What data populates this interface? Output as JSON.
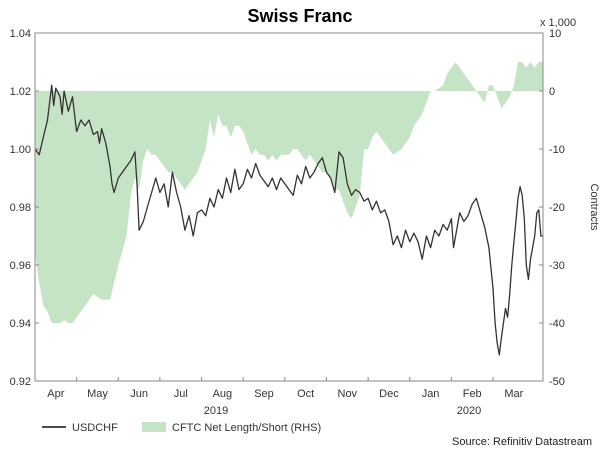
{
  "chart_data": {
    "type": "line",
    "title": "Swiss Franc",
    "multiplier_label": "x 1,000",
    "right_axis_label": "Contracts",
    "x_ticks": [
      "Apr",
      "May",
      "Jun",
      "Jul",
      "Aug",
      "Sep",
      "Oct",
      "Nov",
      "Dec",
      "Jan",
      "Feb",
      "Mar"
    ],
    "year_labels": [
      "2019",
      "2020"
    ],
    "left_axis": {
      "ticks": [
        "1.04",
        "1.02",
        "1.00",
        "0.98",
        "0.96",
        "0.94",
        "0.92"
      ],
      "ylim": [
        0.92,
        1.04
      ]
    },
    "right_axis": {
      "ticks": [
        "10",
        "0",
        "-10",
        "-20",
        "-30",
        "-40",
        "-50"
      ],
      "ylim": [
        -50,
        10
      ]
    },
    "x_range": [
      0,
      12.2
    ],
    "series": [
      {
        "name": "USDCHF",
        "color": "#333333",
        "points": [
          [
            0.0,
            1.0
          ],
          [
            0.1,
            0.998
          ],
          [
            0.2,
            1.004
          ],
          [
            0.3,
            1.01
          ],
          [
            0.4,
            1.022
          ],
          [
            0.45,
            1.015
          ],
          [
            0.5,
            1.021
          ],
          [
            0.6,
            1.018
          ],
          [
            0.65,
            1.012
          ],
          [
            0.7,
            1.02
          ],
          [
            0.8,
            1.013
          ],
          [
            0.9,
            1.018
          ],
          [
            1.0,
            1.006
          ],
          [
            1.1,
            1.01
          ],
          [
            1.2,
            1.008
          ],
          [
            1.3,
            1.01
          ],
          [
            1.4,
            1.005
          ],
          [
            1.5,
            1.006
          ],
          [
            1.55,
            1.002
          ],
          [
            1.6,
            1.007
          ],
          [
            1.7,
            1.002
          ],
          [
            1.8,
            0.994
          ],
          [
            1.85,
            0.988
          ],
          [
            1.9,
            0.985
          ],
          [
            2.0,
            0.99
          ],
          [
            2.1,
            0.992
          ],
          [
            2.2,
            0.994
          ],
          [
            2.3,
            0.996
          ],
          [
            2.4,
            0.999
          ],
          [
            2.45,
            0.988
          ],
          [
            2.5,
            0.972
          ],
          [
            2.6,
            0.975
          ],
          [
            2.7,
            0.98
          ],
          [
            2.8,
            0.985
          ],
          [
            2.9,
            0.99
          ],
          [
            3.0,
            0.985
          ],
          [
            3.1,
            0.988
          ],
          [
            3.2,
            0.98
          ],
          [
            3.3,
            0.992
          ],
          [
            3.4,
            0.985
          ],
          [
            3.5,
            0.98
          ],
          [
            3.6,
            0.972
          ],
          [
            3.7,
            0.977
          ],
          [
            3.8,
            0.97
          ],
          [
            3.9,
            0.978
          ],
          [
            4.0,
            0.979
          ],
          [
            4.1,
            0.977
          ],
          [
            4.2,
            0.983
          ],
          [
            4.3,
            0.98
          ],
          [
            4.4,
            0.986
          ],
          [
            4.5,
            0.983
          ],
          [
            4.6,
            0.99
          ],
          [
            4.7,
            0.985
          ],
          [
            4.8,
            0.993
          ],
          [
            4.9,
            0.986
          ],
          [
            5.0,
            0.988
          ],
          [
            5.1,
            0.993
          ],
          [
            5.2,
            0.99
          ],
          [
            5.3,
            0.995
          ],
          [
            5.4,
            0.991
          ],
          [
            5.5,
            0.989
          ],
          [
            5.6,
            0.987
          ],
          [
            5.7,
            0.99
          ],
          [
            5.8,
            0.986
          ],
          [
            5.9,
            0.99
          ],
          [
            6.0,
            0.988
          ],
          [
            6.1,
            0.986
          ],
          [
            6.2,
            0.984
          ],
          [
            6.3,
            0.991
          ],
          [
            6.4,
            0.988
          ],
          [
            6.5,
            0.994
          ],
          [
            6.6,
            0.99
          ],
          [
            6.7,
            0.992
          ],
          [
            6.8,
            0.995
          ],
          [
            6.9,
            0.997
          ],
          [
            7.0,
            0.992
          ],
          [
            7.1,
            0.99
          ],
          [
            7.2,
            0.985
          ],
          [
            7.3,
            0.999
          ],
          [
            7.4,
            0.997
          ],
          [
            7.5,
            0.988
          ],
          [
            7.6,
            0.984
          ],
          [
            7.7,
            0.986
          ],
          [
            7.8,
            0.985
          ],
          [
            7.9,
            0.982
          ],
          [
            8.0,
            0.983
          ],
          [
            8.1,
            0.979
          ],
          [
            8.2,
            0.982
          ],
          [
            8.3,
            0.978
          ],
          [
            8.4,
            0.979
          ],
          [
            8.5,
            0.975
          ],
          [
            8.6,
            0.967
          ],
          [
            8.7,
            0.97
          ],
          [
            8.8,
            0.966
          ],
          [
            8.9,
            0.972
          ],
          [
            9.0,
            0.968
          ],
          [
            9.1,
            0.971
          ],
          [
            9.2,
            0.968
          ],
          [
            9.3,
            0.962
          ],
          [
            9.4,
            0.97
          ],
          [
            9.5,
            0.966
          ],
          [
            9.6,
            0.972
          ],
          [
            9.7,
            0.97
          ],
          [
            9.8,
            0.974
          ],
          [
            9.9,
            0.972
          ],
          [
            10.0,
            0.976
          ],
          [
            10.05,
            0.966
          ],
          [
            10.1,
            0.97
          ],
          [
            10.2,
            0.978
          ],
          [
            10.3,
            0.975
          ],
          [
            10.4,
            0.977
          ],
          [
            10.5,
            0.981
          ],
          [
            10.6,
            0.983
          ],
          [
            10.7,
            0.978
          ],
          [
            10.8,
            0.973
          ],
          [
            10.9,
            0.966
          ],
          [
            11.0,
            0.952
          ],
          [
            11.05,
            0.94
          ],
          [
            11.1,
            0.933
          ],
          [
            11.15,
            0.929
          ],
          [
            11.2,
            0.935
          ],
          [
            11.3,
            0.945
          ],
          [
            11.35,
            0.942
          ],
          [
            11.4,
            0.95
          ],
          [
            11.45,
            0.96
          ],
          [
            11.5,
            0.968
          ],
          [
            11.55,
            0.975
          ],
          [
            11.6,
            0.983
          ],
          [
            11.65,
            0.987
          ],
          [
            11.7,
            0.984
          ],
          [
            11.75,
            0.976
          ],
          [
            11.8,
            0.96
          ],
          [
            11.85,
            0.955
          ],
          [
            11.9,
            0.962
          ],
          [
            11.95,
            0.966
          ],
          [
            12.0,
            0.97
          ],
          [
            12.05,
            0.978
          ],
          [
            12.1,
            0.979
          ],
          [
            12.15,
            0.97
          ],
          [
            12.2,
            0.97
          ]
        ]
      },
      {
        "name": "CFTC Net Length/Short (RHS)",
        "color": "#c5e3c5",
        "points": [
          [
            0.0,
            -28
          ],
          [
            0.1,
            -33
          ],
          [
            0.2,
            -37
          ],
          [
            0.3,
            -38
          ],
          [
            0.4,
            -40
          ],
          [
            0.5,
            -40
          ],
          [
            0.6,
            -40
          ],
          [
            0.7,
            -39.5
          ],
          [
            0.8,
            -40
          ],
          [
            0.9,
            -40
          ],
          [
            1.0,
            -39
          ],
          [
            1.2,
            -37
          ],
          [
            1.4,
            -35
          ],
          [
            1.6,
            -36
          ],
          [
            1.8,
            -36
          ],
          [
            2.0,
            -30
          ],
          [
            2.2,
            -25
          ],
          [
            2.3,
            -18
          ],
          [
            2.4,
            -15
          ],
          [
            2.5,
            -17
          ],
          [
            2.6,
            -12
          ],
          [
            2.7,
            -10
          ],
          [
            2.8,
            -11
          ],
          [
            2.9,
            -11
          ],
          [
            3.0,
            -12
          ],
          [
            3.1,
            -13
          ],
          [
            3.2,
            -14
          ],
          [
            3.3,
            -14
          ],
          [
            3.4,
            -15
          ],
          [
            3.5,
            -16
          ],
          [
            3.6,
            -17
          ],
          [
            3.7,
            -16
          ],
          [
            3.8,
            -15
          ],
          [
            3.9,
            -14
          ],
          [
            4.0,
            -12
          ],
          [
            4.1,
            -10
          ],
          [
            4.2,
            -5
          ],
          [
            4.3,
            -8
          ],
          [
            4.4,
            -4
          ],
          [
            4.5,
            -6
          ],
          [
            4.6,
            -6
          ],
          [
            4.7,
            -8
          ],
          [
            4.8,
            -6
          ],
          [
            4.9,
            -6
          ],
          [
            5.0,
            -7
          ],
          [
            5.1,
            -9
          ],
          [
            5.2,
            -11
          ],
          [
            5.3,
            -10
          ],
          [
            5.4,
            -11
          ],
          [
            5.5,
            -11
          ],
          [
            5.6,
            -12
          ],
          [
            5.7,
            -11
          ],
          [
            5.8,
            -12
          ],
          [
            5.9,
            -11
          ],
          [
            6.0,
            -11
          ],
          [
            6.1,
            -11
          ],
          [
            6.2,
            -10
          ],
          [
            6.3,
            -10
          ],
          [
            6.4,
            -11
          ],
          [
            6.5,
            -12
          ],
          [
            6.6,
            -11
          ],
          [
            6.7,
            -12
          ],
          [
            6.8,
            -13
          ],
          [
            6.9,
            -14
          ],
          [
            7.0,
            -14
          ],
          [
            7.1,
            -15
          ],
          [
            7.2,
            -17
          ],
          [
            7.3,
            -17
          ],
          [
            7.4,
            -19
          ],
          [
            7.5,
            -21
          ],
          [
            7.6,
            -22
          ],
          [
            7.7,
            -20
          ],
          [
            7.8,
            -18
          ],
          [
            7.9,
            -10
          ],
          [
            8.0,
            -10
          ],
          [
            8.1,
            -8
          ],
          [
            8.2,
            -7
          ],
          [
            8.4,
            -9
          ],
          [
            8.6,
            -11
          ],
          [
            8.8,
            -10
          ],
          [
            9.0,
            -8
          ],
          [
            9.1,
            -6
          ],
          [
            9.2,
            -5
          ],
          [
            9.3,
            -4
          ],
          [
            9.4,
            -2
          ],
          [
            9.5,
            0
          ],
          [
            9.6,
            0
          ],
          [
            9.8,
            1
          ],
          [
            9.9,
            3
          ],
          [
            10.0,
            4
          ],
          [
            10.1,
            5
          ],
          [
            10.2,
            4
          ],
          [
            10.3,
            3
          ],
          [
            10.4,
            2
          ],
          [
            10.5,
            1
          ],
          [
            10.6,
            0
          ],
          [
            10.7,
            -1
          ],
          [
            10.8,
            -2
          ],
          [
            10.9,
            1
          ],
          [
            11.0,
            1
          ],
          [
            11.1,
            -1
          ],
          [
            11.2,
            -3
          ],
          [
            11.3,
            -2
          ],
          [
            11.4,
            -1
          ],
          [
            11.5,
            1
          ],
          [
            11.6,
            5
          ],
          [
            11.7,
            5
          ],
          [
            11.8,
            4
          ],
          [
            11.9,
            5
          ],
          [
            12.0,
            4
          ],
          [
            12.1,
            5
          ],
          [
            12.2,
            5
          ]
        ]
      }
    ],
    "source": "Source: Refinitiv Datastream",
    "grid": false,
    "legend_position": "bottom-left"
  }
}
